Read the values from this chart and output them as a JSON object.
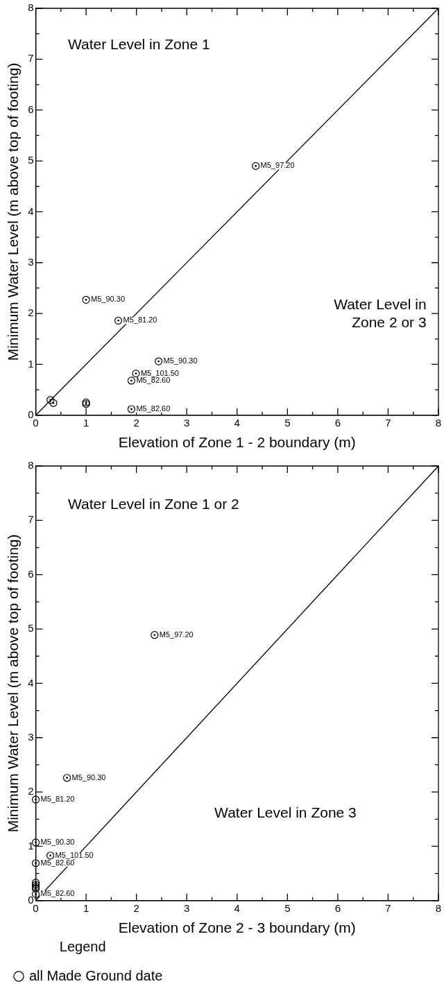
{
  "chart_data": [
    {
      "type": "scatter",
      "xlabel": "Elevation of Zone 1 - 2 boundary (m)",
      "ylabel": "Minimum Water Level (m above top of footing)",
      "xlim": [
        0,
        8
      ],
      "ylim": [
        0,
        8
      ],
      "xticks": [
        0,
        {
          "value": 0.5,
          "label": null
        },
        1,
        {
          "value": 1.5,
          "label": null
        },
        2,
        {
          "value": 2.5,
          "label": null
        },
        3,
        {
          "value": 3.5,
          "label": null
        },
        4,
        {
          "value": 4.5,
          "label": null
        },
        5,
        {
          "value": 5.5,
          "label": null
        },
        6,
        {
          "value": 6.5,
          "label": null
        },
        7,
        {
          "value": 7.5,
          "label": null
        },
        8
      ],
      "yticks": [
        0,
        {
          "value": 0.5,
          "label": null
        },
        1,
        {
          "value": 1.5,
          "label": null
        },
        2,
        {
          "value": 2.5,
          "label": null
        },
        3,
        {
          "value": 3.5,
          "label": null
        },
        4,
        {
          "value": 4.5,
          "label": null
        },
        5,
        {
          "value": 5.5,
          "label": null
        },
        6,
        {
          "value": 6.5,
          "label": null
        },
        7,
        {
          "value": 7.5,
          "label": null
        },
        8
      ],
      "marker": "circle",
      "legend": false,
      "annotations": [
        "Water Level in Zone 1",
        "Water Level in Zone 2 or 3"
      ],
      "series": [
        {
          "type": "scatter",
          "color": "#000000",
          "x": [
            4.37,
            1.0,
            1.64,
            2.44,
            1.99,
            1.9,
            1.9,
            0.29,
            0.35,
            1.0,
            1.0
          ],
          "values": [
            4.9,
            2.27,
            1.86,
            1.06,
            0.82,
            0.68,
            0.12,
            0.3,
            0.24,
            0.25,
            0.22
          ],
          "value_labels": [
            "M5_97.20",
            "M5_90.30",
            "M5_81.20",
            "M5_90.30",
            "M5_101.50",
            "M5_82.60",
            "M5_82.60",
            null,
            null,
            null,
            null
          ]
        },
        {
          "type": "line",
          "color": "#000000",
          "marker": "none",
          "x": [
            0,
            8
          ],
          "values": [
            0,
            8
          ]
        }
      ]
    },
    {
      "type": "scatter",
      "xlabel": "Elevation of Zone 2 - 3 boundary (m)",
      "ylabel": "Minimum Water Level (m above top of footing)",
      "xlim": [
        0,
        8
      ],
      "ylim": [
        0,
        8
      ],
      "xticks": [
        0,
        {
          "value": 0.5,
          "label": null
        },
        1,
        {
          "value": 1.5,
          "label": null
        },
        2,
        {
          "value": 2.5,
          "label": null
        },
        3,
        {
          "value": 3.5,
          "label": null
        },
        4,
        {
          "value": 4.5,
          "label": null
        },
        5,
        {
          "value": 5.5,
          "label": null
        },
        6,
        {
          "value": 6.5,
          "label": null
        },
        7,
        {
          "value": 7.5,
          "label": null
        },
        8
      ],
      "yticks": [
        0,
        {
          "value": 0.5,
          "label": null
        },
        1,
        {
          "value": 1.5,
          "label": null
        },
        2,
        {
          "value": 2.5,
          "label": null
        },
        3,
        {
          "value": 3.5,
          "label": null
        },
        4,
        {
          "value": 4.5,
          "label": null
        },
        5,
        {
          "value": 5.5,
          "label": null
        },
        6,
        {
          "value": 6.5,
          "label": null
        },
        7,
        {
          "value": 7.5,
          "label": null
        },
        8
      ],
      "marker": "circle",
      "legend": "bottom",
      "legend_title": "Legend",
      "annotations": [
        "Water Level in Zone 1 or 2",
        "Water Level in Zone 3"
      ],
      "series": [
        {
          "type": "scatter",
          "name": "all Made Ground date",
          "color": "#000000",
          "x": [
            2.36,
            0.62,
            0,
            0,
            0.29,
            0,
            0,
            0,
            0,
            0,
            0
          ],
          "values": [
            4.89,
            2.26,
            1.86,
            1.07,
            0.83,
            0.69,
            0.12,
            0.33,
            0.29,
            0.25,
            0.22
          ],
          "value_labels": [
            "M5_97.20",
            "M5_90.30",
            "M5_81.20",
            "M5_90.30",
            "M5_101.50",
            "M5_82.60",
            "M5_82.60",
            null,
            null,
            null,
            null
          ]
        },
        {
          "type": "line",
          "color": "#000000",
          "marker": "none",
          "x": [
            0,
            8
          ],
          "values": [
            0,
            8
          ]
        }
      ]
    }
  ]
}
